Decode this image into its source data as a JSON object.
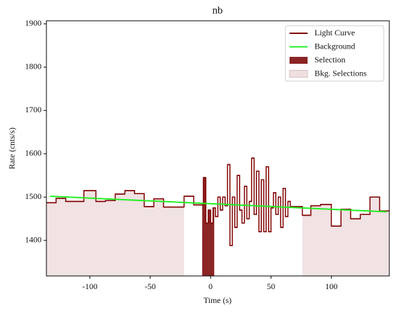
{
  "chart_data": {
    "type": "step",
    "title": "nb",
    "x_label": "Time (s)",
    "y_label": "Rate (cnts/s)",
    "xlim": [
      -136,
      148
    ],
    "ylim": [
      1318,
      1907
    ],
    "xticks": [
      -100,
      -50,
      0,
      50,
      100
    ],
    "yticks": [
      1400,
      1500,
      1600,
      1700,
      1800,
      1900
    ],
    "legend": "upper right",
    "series": [
      {
        "name": "Light Curve",
        "color": "#800000",
        "bins": [
          -136,
          -128,
          -120,
          -111,
          -105,
          -95,
          -87,
          -79,
          -71,
          -63,
          -55,
          -47,
          -39,
          -31,
          -22,
          -14,
          -8,
          -6,
          -4,
          -2,
          0,
          2,
          4,
          6,
          8,
          10,
          12,
          14,
          16,
          18,
          20,
          22,
          24,
          26,
          28,
          30,
          32,
          34,
          36,
          38,
          40,
          42,
          44,
          46,
          48,
          50,
          52,
          54,
          56,
          58,
          60,
          62,
          64,
          66,
          76,
          83,
          91,
          100,
          108,
          116,
          124,
          132,
          140,
          148
        ],
        "values": [
          1487,
          1497,
          1490,
          1490,
          1515,
          1490,
          1492,
          1507,
          1515,
          1508,
          1478,
          1496,
          1477,
          1477,
          1502,
          1482,
          1482,
          1545,
          1440,
          1470,
          1440,
          1475,
          1455,
          1500,
          1470,
          1500,
          1480,
          1575,
          1388,
          1500,
          1430,
          1550,
          1470,
          1440,
          1525,
          1450,
          1490,
          1590,
          1460,
          1560,
          1420,
          1540,
          1420,
          1570,
          1420,
          1475,
          1510,
          1460,
          1500,
          1430,
          1520,
          1455,
          1490,
          1478,
          1458,
          1480,
          1483,
          1433,
          1472,
          1450,
          1460,
          1500,
          1468
        ]
      },
      {
        "name": "Background",
        "color": "#22ee22",
        "x": [
          -133,
          146
        ],
        "values": [
          1502,
          1466
        ]
      },
      {
        "name": "Selection",
        "color": "#8c2525",
        "range": [
          -7,
          3
        ]
      },
      {
        "name": "Bkg. Selections",
        "color": "#efdfe0",
        "ranges": [
          [
            -136,
            -22
          ],
          [
            76,
            148
          ]
        ]
      }
    ]
  }
}
